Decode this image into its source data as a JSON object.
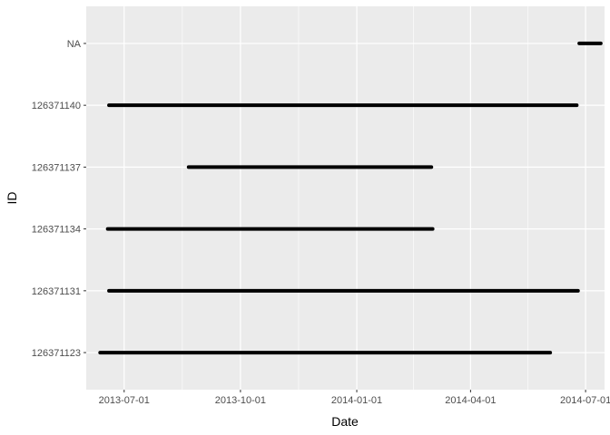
{
  "chart_data": {
    "type": "line",
    "title": "",
    "xlabel": "Date",
    "ylabel": "ID",
    "x_axis_type": "date",
    "xlim": [
      "2013-06-01",
      "2014-07-16"
    ],
    "x_ticks": [
      "2013-07-01",
      "2013-10-01",
      "2014-01-01",
      "2014-04-01",
      "2014-07-01"
    ],
    "x_tick_labels": [
      "2013-07-01",
      "2013-10-01",
      "2014-01-01",
      "2014-04-01",
      "2014-07-01"
    ],
    "categories": [
      "126371123",
      "126371131",
      "126371134",
      "126371137",
      "126371140",
      "NA"
    ],
    "grid": true,
    "legend": "none",
    "background_color": "#EBEBEB",
    "gridline_color": "#FFFFFF",
    "line_color": "#000000",
    "series": [
      {
        "id": "126371123",
        "start": "2013-06-12",
        "end": "2014-06-03"
      },
      {
        "id": "126371131",
        "start": "2013-06-19",
        "end": "2014-06-25"
      },
      {
        "id": "126371134",
        "start": "2013-06-18",
        "end": "2014-03-02"
      },
      {
        "id": "126371137",
        "start": "2013-08-21",
        "end": "2014-03-01"
      },
      {
        "id": "126371140",
        "start": "2013-06-19",
        "end": "2014-06-24"
      },
      {
        "id": "NA",
        "start": "2014-06-26",
        "end": "2014-07-13"
      }
    ]
  }
}
